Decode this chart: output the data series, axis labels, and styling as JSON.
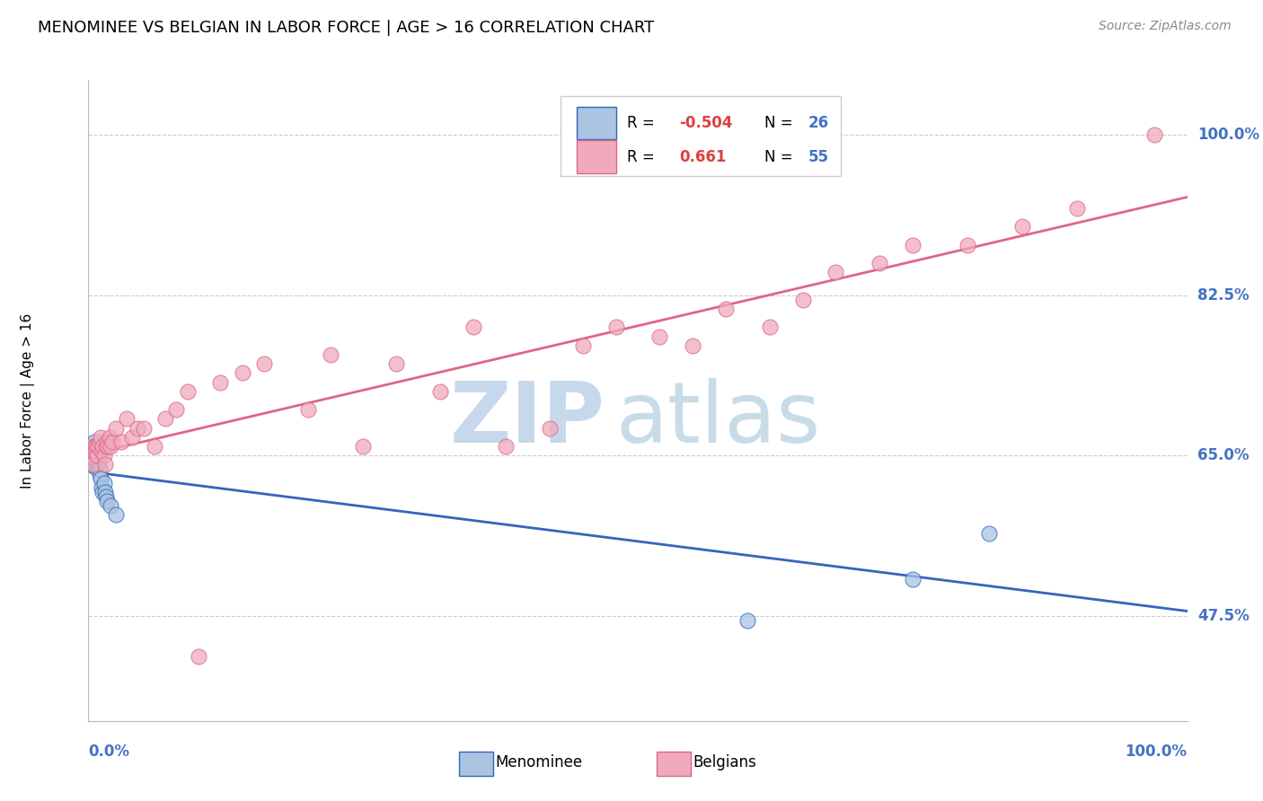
{
  "title": "MENOMINEE VS BELGIAN IN LABOR FORCE | AGE > 16 CORRELATION CHART",
  "source": "Source: ZipAtlas.com",
  "ylabel": "In Labor Force | Age > 16",
  "ytick_labels": [
    "100.0%",
    "82.5%",
    "65.0%",
    "47.5%"
  ],
  "ytick_values": [
    1.0,
    0.825,
    0.65,
    0.475
  ],
  "xlim": [
    0.0,
    1.0
  ],
  "ylim": [
    0.36,
    1.06
  ],
  "blue_color": "#aac4e2",
  "pink_color": "#f0aabb",
  "blue_line_color": "#3366bb",
  "pink_line_color": "#dd6688",
  "menominee_x": [
    0.002,
    0.003,
    0.004,
    0.005,
    0.005,
    0.006,
    0.006,
    0.007,
    0.007,
    0.008,
    0.008,
    0.009,
    0.01,
    0.01,
    0.011,
    0.012,
    0.013,
    0.014,
    0.015,
    0.016,
    0.017,
    0.02,
    0.025,
    0.6,
    0.75,
    0.82
  ],
  "menominee_y": [
    0.66,
    0.65,
    0.655,
    0.64,
    0.665,
    0.645,
    0.65,
    0.65,
    0.66,
    0.635,
    0.645,
    0.64,
    0.63,
    0.635,
    0.625,
    0.615,
    0.61,
    0.62,
    0.61,
    0.605,
    0.6,
    0.595,
    0.585,
    0.47,
    0.515,
    0.565
  ],
  "belgian_x": [
    0.003,
    0.004,
    0.005,
    0.006,
    0.007,
    0.008,
    0.009,
    0.01,
    0.011,
    0.012,
    0.013,
    0.014,
    0.015,
    0.016,
    0.017,
    0.018,
    0.019,
    0.02,
    0.022,
    0.025,
    0.03,
    0.035,
    0.04,
    0.045,
    0.05,
    0.06,
    0.07,
    0.08,
    0.09,
    0.1,
    0.12,
    0.14,
    0.16,
    0.2,
    0.22,
    0.25,
    0.28,
    0.32,
    0.35,
    0.38,
    0.42,
    0.45,
    0.48,
    0.52,
    0.55,
    0.58,
    0.62,
    0.65,
    0.68,
    0.72,
    0.75,
    0.8,
    0.85,
    0.9,
    0.97
  ],
  "belgian_y": [
    0.65,
    0.64,
    0.66,
    0.655,
    0.66,
    0.65,
    0.66,
    0.665,
    0.67,
    0.655,
    0.66,
    0.65,
    0.64,
    0.66,
    0.665,
    0.66,
    0.67,
    0.66,
    0.665,
    0.68,
    0.665,
    0.69,
    0.67,
    0.68,
    0.68,
    0.66,
    0.69,
    0.7,
    0.72,
    0.43,
    0.73,
    0.74,
    0.75,
    0.7,
    0.76,
    0.66,
    0.75,
    0.72,
    0.79,
    0.66,
    0.68,
    0.77,
    0.79,
    0.78,
    0.77,
    0.81,
    0.79,
    0.82,
    0.85,
    0.86,
    0.88,
    0.88,
    0.9,
    0.92,
    1.0
  ]
}
